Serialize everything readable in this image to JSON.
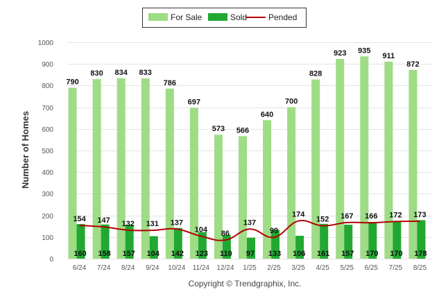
{
  "credit": "Copyright © Trendgraphix, Inc.",
  "colors": {
    "for_sale": "#9edc86",
    "sold": "#22a832",
    "pended": "#b30000",
    "grid": "#e4e4e4"
  },
  "chart_data": {
    "type": "bar",
    "title": "",
    "xlabel": "",
    "ylabel": "Number of Homes",
    "ylim": [
      0,
      1000
    ],
    "yticks": [
      0,
      100,
      200,
      300,
      400,
      500,
      600,
      700,
      800,
      900,
      1000
    ],
    "grid": true,
    "legend_position": "top-center",
    "categories": [
      "6/24",
      "7/24",
      "8/24",
      "9/24",
      "10/24",
      "11/24",
      "12/24",
      "1/25",
      "2/25",
      "3/25",
      "4/25",
      "5/25",
      "6/25",
      "7/25",
      "8/25"
    ],
    "series": [
      {
        "name": "For Sale",
        "kind": "bar",
        "values": [
          790,
          830,
          834,
          833,
          786,
          697,
          573,
          566,
          640,
          700,
          828,
          923,
          935,
          911,
          872
        ]
      },
      {
        "name": "Sold",
        "kind": "bar",
        "values": [
          160,
          158,
          157,
          104,
          142,
          123,
          110,
          97,
          133,
          106,
          161,
          157,
          170,
          170,
          178
        ]
      },
      {
        "name": "Pended",
        "kind": "line",
        "values": [
          154,
          147,
          132,
          131,
          137,
          104,
          86,
          137,
          99,
          174,
          152,
          167,
          166,
          172,
          173
        ]
      }
    ]
  }
}
